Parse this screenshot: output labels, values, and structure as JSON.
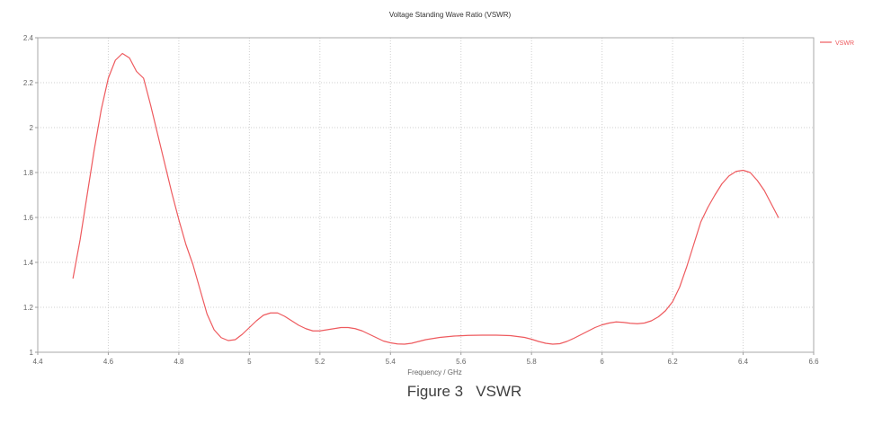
{
  "chart": {
    "title": "Voltage Standing Wave Ratio (VSWR)"
  },
  "caption": {
    "text": "Figure 3   VSWR"
  },
  "legend": {
    "label": "VSWR"
  },
  "colors": {
    "curve": "#ee5a5e",
    "grid": "#cfcfcf",
    "border": "#a9a9a9",
    "tick": "#9f9f9f",
    "tick_text": "#666666",
    "axis_label_text": "#666666",
    "title_text": "#333333",
    "legend_text": "#ee5a5e",
    "caption_text": "#3f3f3f",
    "background": "#ffffff"
  },
  "chart_data": {
    "type": "line",
    "title": "Voltage Standing Wave Ratio (VSWR)",
    "xlabel": "Frequency / GHz",
    "ylabel": "",
    "xlim": [
      4.4,
      6.6
    ],
    "ylim": [
      1.0,
      2.4
    ],
    "xticks": [
      "4.4",
      "4.6",
      "4.8",
      "5",
      "5.2",
      "5.4",
      "5.6",
      "5.8",
      "6",
      "6.2",
      "6.4",
      "6.6"
    ],
    "yticks": [
      "1",
      "1.2",
      "1.4",
      "1.6",
      "1.8",
      "2",
      "2.2",
      "2.4"
    ],
    "grid": true,
    "grid_style": "dotted",
    "legend_position": "top-right-outside",
    "series": [
      {
        "name": "VSWR",
        "color": "#ee5a5e",
        "points": [
          [
            4.5,
            1.33
          ],
          [
            4.52,
            1.5
          ],
          [
            4.54,
            1.7
          ],
          [
            4.56,
            1.9
          ],
          [
            4.58,
            2.08
          ],
          [
            4.6,
            2.22
          ],
          [
            4.62,
            2.3
          ],
          [
            4.64,
            2.33
          ],
          [
            4.66,
            2.31
          ],
          [
            4.68,
            2.25
          ],
          [
            4.7,
            2.22
          ],
          [
            4.72,
            2.1
          ],
          [
            4.74,
            1.97
          ],
          [
            4.76,
            1.84
          ],
          [
            4.78,
            1.71
          ],
          [
            4.8,
            1.59
          ],
          [
            4.82,
            1.48
          ],
          [
            4.84,
            1.39
          ],
          [
            4.86,
            1.28
          ],
          [
            4.88,
            1.17
          ],
          [
            4.9,
            1.1
          ],
          [
            4.92,
            1.065
          ],
          [
            4.94,
            1.052
          ],
          [
            4.96,
            1.056
          ],
          [
            4.98,
            1.08
          ],
          [
            5.0,
            1.11
          ],
          [
            5.02,
            1.14
          ],
          [
            5.04,
            1.165
          ],
          [
            5.06,
            1.175
          ],
          [
            5.08,
            1.175
          ],
          [
            5.1,
            1.16
          ],
          [
            5.12,
            1.14
          ],
          [
            5.14,
            1.12
          ],
          [
            5.16,
            1.105
          ],
          [
            5.18,
            1.095
          ],
          [
            5.2,
            1.095
          ],
          [
            5.22,
            1.1
          ],
          [
            5.24,
            1.105
          ],
          [
            5.26,
            1.11
          ],
          [
            5.28,
            1.11
          ],
          [
            5.3,
            1.105
          ],
          [
            5.32,
            1.095
          ],
          [
            5.34,
            1.08
          ],
          [
            5.36,
            1.065
          ],
          [
            5.38,
            1.05
          ],
          [
            5.4,
            1.042
          ],
          [
            5.42,
            1.037
          ],
          [
            5.44,
            1.036
          ],
          [
            5.46,
            1.04
          ],
          [
            5.48,
            1.048
          ],
          [
            5.5,
            1.056
          ],
          [
            5.54,
            1.066
          ],
          [
            5.58,
            1.072
          ],
          [
            5.62,
            1.075
          ],
          [
            5.66,
            1.076
          ],
          [
            5.7,
            1.076
          ],
          [
            5.74,
            1.074
          ],
          [
            5.78,
            1.066
          ],
          [
            5.8,
            1.058
          ],
          [
            5.82,
            1.048
          ],
          [
            5.84,
            1.04
          ],
          [
            5.86,
            1.036
          ],
          [
            5.88,
            1.038
          ],
          [
            5.9,
            1.048
          ],
          [
            5.92,
            1.062
          ],
          [
            5.94,
            1.078
          ],
          [
            5.96,
            1.094
          ],
          [
            5.98,
            1.11
          ],
          [
            6.0,
            1.122
          ],
          [
            6.02,
            1.13
          ],
          [
            6.04,
            1.135
          ],
          [
            6.06,
            1.133
          ],
          [
            6.08,
            1.129
          ],
          [
            6.1,
            1.127
          ],
          [
            6.12,
            1.13
          ],
          [
            6.14,
            1.14
          ],
          [
            6.16,
            1.158
          ],
          [
            6.18,
            1.185
          ],
          [
            6.2,
            1.225
          ],
          [
            6.22,
            1.29
          ],
          [
            6.24,
            1.38
          ],
          [
            6.26,
            1.48
          ],
          [
            6.28,
            1.58
          ],
          [
            6.3,
            1.645
          ],
          [
            6.32,
            1.7
          ],
          [
            6.34,
            1.75
          ],
          [
            6.36,
            1.785
          ],
          [
            6.38,
            1.805
          ],
          [
            6.4,
            1.81
          ],
          [
            6.42,
            1.8
          ],
          [
            6.44,
            1.765
          ],
          [
            6.46,
            1.72
          ],
          [
            6.48,
            1.66
          ],
          [
            6.5,
            1.6
          ]
        ]
      }
    ]
  }
}
